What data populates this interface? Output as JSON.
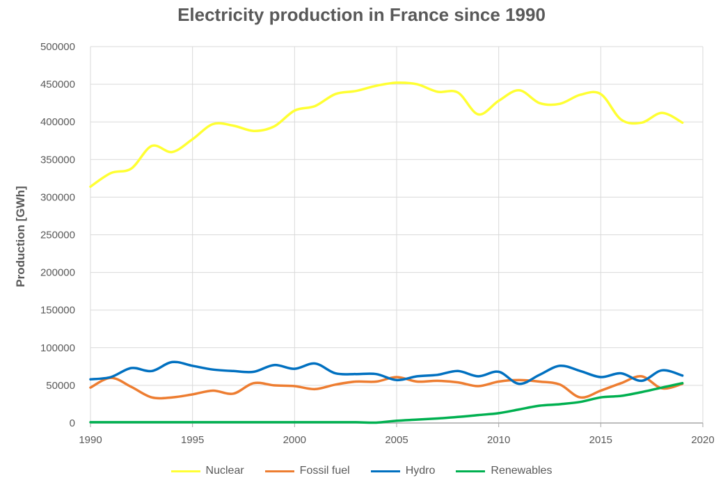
{
  "chart_data": {
    "type": "line",
    "title": "Electricity production in France since 1990",
    "xlabel": "",
    "ylabel": "Production [GWh]",
    "xlim": [
      1990,
      2020
    ],
    "ylim": [
      0,
      500000
    ],
    "x_ticks": [
      "1990",
      "1995",
      "2000",
      "2005",
      "2010",
      "2015",
      "2020"
    ],
    "y_ticks": [
      "0",
      "50000",
      "100000",
      "150000",
      "200000",
      "250000",
      "300000",
      "350000",
      "400000",
      "450000",
      "500000"
    ],
    "grid": true,
    "legend_position": "bottom",
    "x": [
      1990,
      1991,
      1992,
      1993,
      1994,
      1995,
      1996,
      1997,
      1998,
      1999,
      2000,
      2001,
      2002,
      2003,
      2004,
      2005,
      2006,
      2007,
      2008,
      2009,
      2010,
      2011,
      2012,
      2013,
      2014,
      2015,
      2016,
      2017,
      2018,
      2019
    ],
    "series": [
      {
        "name": "Nuclear",
        "color": "#ffff33",
        "values": [
          314000,
          332000,
          338000,
          368000,
          360000,
          377000,
          397000,
          395000,
          388000,
          394000,
          415000,
          421000,
          437000,
          441000,
          448000,
          452000,
          450000,
          440000,
          439000,
          410000,
          428000,
          442000,
          425000,
          424000,
          436000,
          437000,
          403000,
          399000,
          412000,
          399000
        ]
      },
      {
        "name": "Fossil fuel",
        "color": "#ed7d31",
        "values": [
          47000,
          60000,
          48000,
          34000,
          34000,
          38000,
          43000,
          39000,
          53000,
          50000,
          49000,
          45000,
          51000,
          55000,
          55000,
          61000,
          55000,
          56000,
          54000,
          49000,
          55000,
          57000,
          55000,
          51000,
          34000,
          43000,
          53000,
          62000,
          46000,
          52000
        ]
      },
      {
        "name": "Hydro",
        "color": "#0070c0",
        "values": [
          58000,
          61000,
          73000,
          69000,
          81000,
          76000,
          71000,
          69000,
          68000,
          77000,
          72000,
          79000,
          66000,
          65000,
          65000,
          57000,
          62000,
          64000,
          69000,
          62000,
          68000,
          52000,
          64000,
          76000,
          69000,
          61000,
          66000,
          56000,
          70000,
          63000
        ]
      },
      {
        "name": "Renewables",
        "color": "#00b050",
        "values": [
          1000,
          1000,
          1000,
          1000,
          1000,
          1000,
          1000,
          1000,
          1000,
          1000,
          1000,
          1000,
          1000,
          1000,
          500,
          3000,
          4500,
          6000,
          8000,
          10500,
          13000,
          18000,
          23000,
          25000,
          28000,
          34000,
          36000,
          41000,
          47000,
          53000
        ]
      }
    ]
  }
}
